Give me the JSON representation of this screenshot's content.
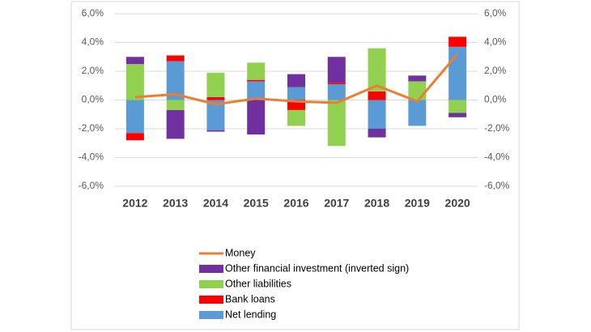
{
  "chart_data": {
    "type": "bar",
    "categories": [
      "2012",
      "2013",
      "2014",
      "2015",
      "2016",
      "2017",
      "2018",
      "2019",
      "2020"
    ],
    "series": [
      {
        "name": "Net lending",
        "color": "#5b9bd5",
        "values": [
          -2.3,
          2.7,
          -2.1,
          1.3,
          0.9,
          1.1,
          -2.0,
          -1.8,
          3.7
        ]
      },
      {
        "name": "Bank loans",
        "color": "#ff0000",
        "values": [
          -0.5,
          0.4,
          0.2,
          0.1,
          -0.7,
          0.1,
          0.6,
          0,
          0.7
        ]
      },
      {
        "name": "Other liabilities",
        "color": "#92d050",
        "values": [
          2.5,
          -0.7,
          1.7,
          1.2,
          -1.1,
          -3.2,
          3.0,
          1.3,
          -0.9
        ]
      },
      {
        "name": "Other financial investment (inverted sign)",
        "color": "#7030a0",
        "values": [
          0.5,
          -2.0,
          -0.1,
          -2.4,
          0.9,
          1.8,
          -0.6,
          0.4,
          -0.3
        ]
      },
      {
        "name": "Money",
        "color": "#ed7d31",
        "type": "line",
        "axis": "y2",
        "values": [
          0.2,
          0.4,
          -0.3,
          0.1,
          -0.1,
          -0.2,
          1.0,
          -0.1,
          3.2
        ]
      }
    ],
    "ylim": [
      -6,
      6
    ],
    "yticks": [
      {
        "value": -6,
        "label": "-6,0%"
      },
      {
        "value": -4,
        "label": "-4,0%"
      },
      {
        "value": -2,
        "label": "-2,0%"
      },
      {
        "value": 0,
        "label": "0,0%"
      },
      {
        "value": 2,
        "label": "2,0%"
      },
      {
        "value": 4,
        "label": "4,0%"
      },
      {
        "value": 6,
        "label": "6,0%"
      }
    ],
    "y2lim": [
      -6,
      6
    ],
    "y2ticks": [
      {
        "value": -6,
        "label": "-6,0%"
      },
      {
        "value": -4,
        "label": "-4,0%"
      },
      {
        "value": -2,
        "label": "-2,0%"
      },
      {
        "value": 0,
        "label": "0,0%"
      },
      {
        "value": 2,
        "label": "2,0%"
      },
      {
        "value": 4,
        "label": "4,0%"
      },
      {
        "value": 6,
        "label": "6,0%"
      }
    ],
    "grid": true,
    "legend": "bottom"
  }
}
